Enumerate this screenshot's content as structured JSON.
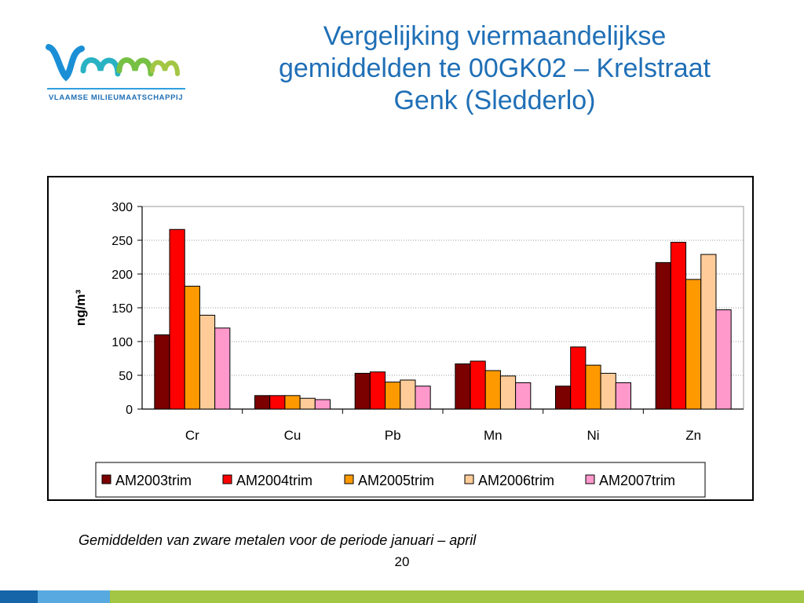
{
  "logo": {
    "text": "Vmm",
    "tagline": "VLAAMSE MILIEUMAATSCHAPPIJ"
  },
  "title_lines": [
    "Vergelijking viermaandelijkse",
    "gemiddelden te 00GK02 – Krelstraat",
    "Genk (Sledderlo)"
  ],
  "colors": {
    "title": "#1f6fb6",
    "footer": [
      "#1565a8",
      "#57a9e0",
      "#a3c644"
    ]
  },
  "chart_data": {
    "type": "bar",
    "categories": [
      "Cr",
      "Cu",
      "Pb",
      "Mn",
      "Ni",
      "Zn"
    ],
    "series": [
      {
        "name": "AM2003trim",
        "color": "#7b0000",
        "values": [
          110,
          20,
          53,
          67,
          34,
          217
        ]
      },
      {
        "name": "AM2004trim",
        "color": "#ff0000",
        "values": [
          266,
          20,
          55,
          71,
          92,
          247
        ]
      },
      {
        "name": "AM2005trim",
        "color": "#ff9900",
        "values": [
          182,
          20,
          40,
          57,
          65,
          192
        ]
      },
      {
        "name": "AM2006trim",
        "color": "#ffcc99",
        "values": [
          139,
          16,
          43,
          49,
          53,
          229
        ]
      },
      {
        "name": "AM2007trim",
        "color": "#ff99cc",
        "values": [
          120,
          14,
          34,
          39,
          39,
          147
        ]
      }
    ],
    "ylabel": "ng/m³",
    "ylim": [
      0,
      300
    ],
    "yticks": [
      0,
      50,
      100,
      150,
      200,
      250,
      300
    ],
    "grid": true,
    "legend_position": "bottom"
  },
  "caption": "Gemiddelden van zware metalen voor de periode januari – april",
  "page_number": "20"
}
